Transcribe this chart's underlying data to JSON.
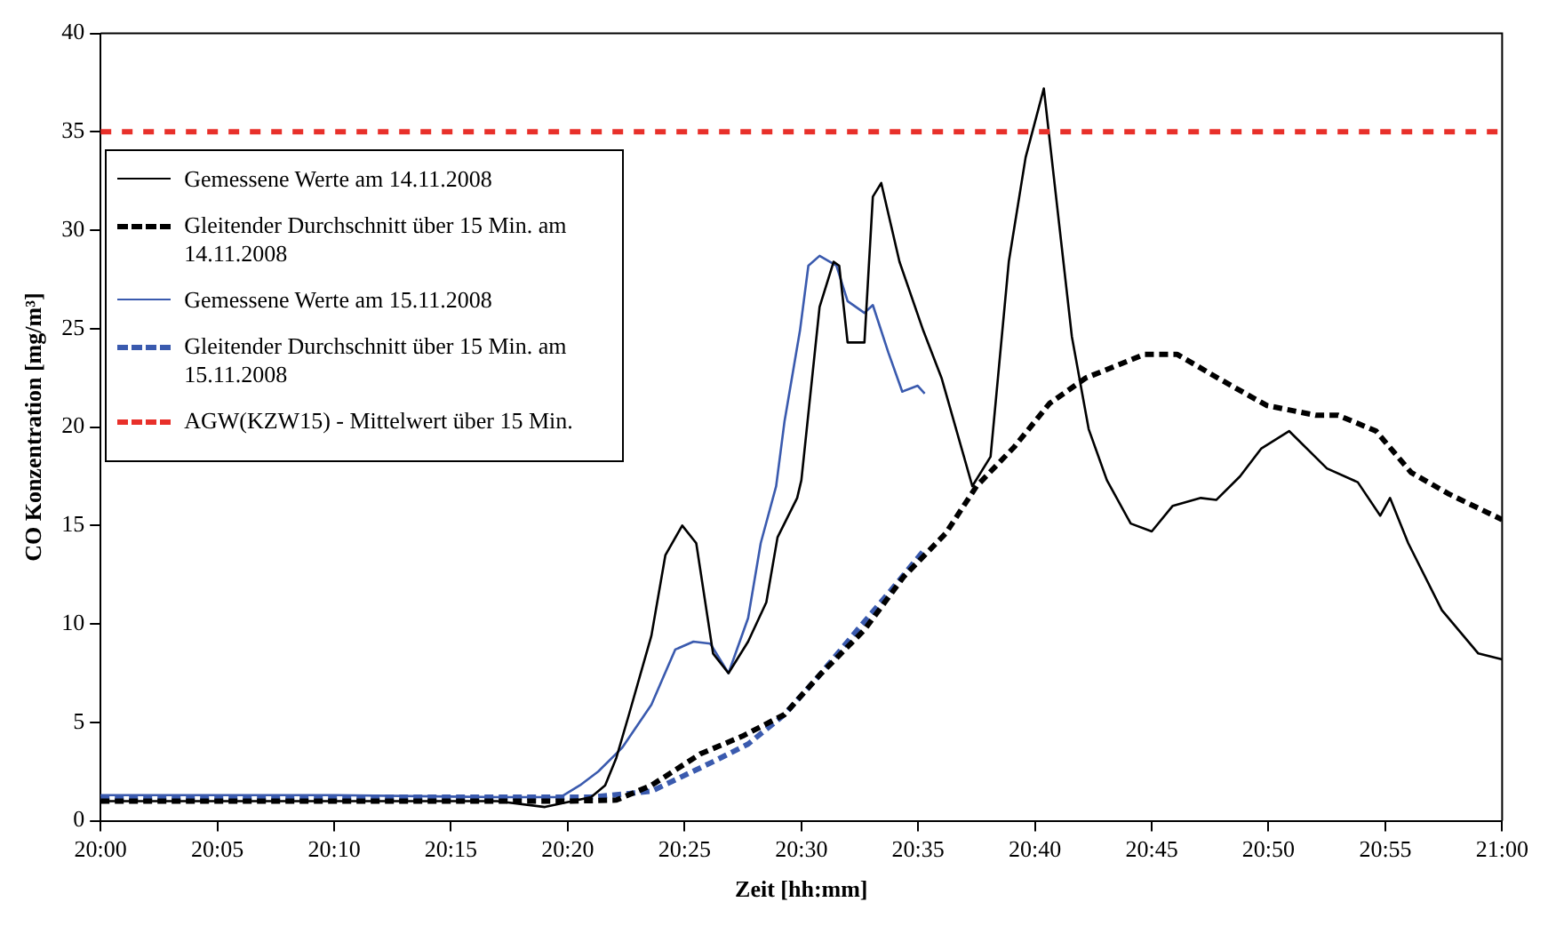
{
  "chart_data": {
    "type": "line",
    "xlabel": "Zeit [hh:mm]",
    "ylabel": "CO Konzentration [mg/m³]",
    "xlim": [
      20,
      21
    ],
    "xticks": [
      {
        "value": 20,
        "label": "20:00"
      },
      {
        "value": 20.0833,
        "label": "20:05"
      },
      {
        "value": 20.1667,
        "label": "20:10"
      },
      {
        "value": 20.25,
        "label": "20:15"
      },
      {
        "value": 20.3333,
        "label": "20:20"
      },
      {
        "value": 20.4167,
        "label": "20:25"
      },
      {
        "value": 20.5,
        "label": "20:30"
      },
      {
        "value": 20.5833,
        "label": "20:35"
      },
      {
        "value": 20.6667,
        "label": "20:40"
      },
      {
        "value": 20.75,
        "label": "20:45"
      },
      {
        "value": 20.8333,
        "label": "20:50"
      },
      {
        "value": 20.9167,
        "label": "20:55"
      },
      {
        "value": 21,
        "label": "21:00"
      }
    ],
    "ylim": [
      0,
      40
    ],
    "yticks": [
      0,
      5,
      10,
      15,
      20,
      25,
      30,
      35,
      40
    ],
    "grid": false,
    "legend": "top left",
    "marker": "none",
    "series": [
      {
        "name": "Gemessene Werte am 14.11.2008",
        "color": "#000000",
        "line_style": "solid",
        "x": [
          20,
          20.083,
          20.167,
          20.283,
          20.317,
          20.35,
          20.36,
          20.368,
          20.377,
          20.393,
          20.403,
          20.415,
          20.425,
          20.437,
          20.448,
          20.462,
          20.475,
          20.483,
          20.497,
          20.5,
          20.513,
          20.523,
          20.527,
          20.533,
          20.545,
          20.551,
          20.557,
          20.57,
          20.587,
          20.6,
          20.622,
          20.635,
          20.648,
          20.66,
          20.673,
          20.693,
          20.705,
          20.718,
          20.735,
          20.75,
          20.765,
          20.785,
          20.796,
          20.813,
          20.828,
          20.848,
          20.875,
          20.897,
          20.913,
          20.92,
          20.933,
          20.957,
          20.983,
          21
        ],
        "values": [
          1.0,
          1.0,
          1.0,
          1.0,
          0.7,
          1.2,
          1.8,
          3.2,
          5.4,
          9.4,
          13.5,
          15.0,
          14.1,
          8.5,
          7.5,
          9.1,
          11.1,
          14.4,
          16.4,
          17.3,
          26.1,
          28.4,
          28.2,
          24.3,
          24.3,
          31.7,
          32.4,
          28.4,
          24.9,
          22.5,
          17.0,
          18.5,
          28.4,
          33.7,
          37.2,
          24.6,
          19.9,
          17.3,
          15.1,
          14.7,
          16.0,
          16.4,
          16.3,
          17.5,
          18.9,
          19.8,
          17.9,
          17.2,
          15.5,
          16.4,
          14.1,
          10.7,
          8.5,
          8.2
        ]
      },
      {
        "name": "Gleitender Durchschnitt über 15 Min. am 14.11.2008",
        "color": "#000000",
        "line_style": "dashed",
        "x": [
          20,
          20.283,
          20.335,
          20.368,
          20.393,
          20.428,
          20.458,
          20.488,
          20.513,
          20.545,
          20.573,
          20.603,
          20.625,
          20.652,
          20.677,
          20.703,
          20.745,
          20.768,
          20.797,
          20.832,
          20.867,
          20.883,
          20.91,
          20.935,
          20.962,
          21
        ],
        "values": [
          1.0,
          1.0,
          1.0,
          1.05,
          1.8,
          3.4,
          4.3,
          5.4,
          7.4,
          9.7,
          12.4,
          14.6,
          17.0,
          19.0,
          21.2,
          22.5,
          23.7,
          23.7,
          22.5,
          21.1,
          20.6,
          20.6,
          19.8,
          17.7,
          16.6,
          15.3
        ]
      },
      {
        "name": "Gemessene Werte am 15.11.2008",
        "color": "#3a5aae",
        "line_style": "solid",
        "x": [
          20,
          20.083,
          20.167,
          20.283,
          20.328,
          20.342,
          20.355,
          20.372,
          20.393,
          20.41,
          20.423,
          20.435,
          20.448,
          20.462,
          20.471,
          20.482,
          20.488,
          20.499,
          20.505,
          20.513,
          20.525,
          20.533,
          20.545,
          20.551,
          20.562,
          20.572,
          20.583,
          20.588
        ],
        "values": [
          1.3,
          1.3,
          1.3,
          1.2,
          1.2,
          1.8,
          2.5,
          3.7,
          5.9,
          8.7,
          9.1,
          9.0,
          7.5,
          10.3,
          14.1,
          17.0,
          20.3,
          24.9,
          28.2,
          28.7,
          28.2,
          26.4,
          25.8,
          26.2,
          23.8,
          21.8,
          22.1,
          21.7
        ]
      },
      {
        "name": "Gleitender Durchschnitt über 15 Min. am 15.11.2008",
        "color": "#3a5aae",
        "line_style": "dashed",
        "x": [
          20,
          20.283,
          20.35,
          20.393,
          20.437,
          20.462,
          20.488,
          20.513,
          20.54,
          20.565,
          20.587
        ],
        "values": [
          1.2,
          1.2,
          1.2,
          1.5,
          3.0,
          3.9,
          5.4,
          7.4,
          9.7,
          11.8,
          13.7
        ]
      }
    ],
    "ref_lines": [
      {
        "axis": "y",
        "value": 35,
        "label": "AGW(KZW15) - Mittelwert über 15 Min.",
        "color": "#e8302a",
        "line_style": "dashed"
      }
    ]
  }
}
